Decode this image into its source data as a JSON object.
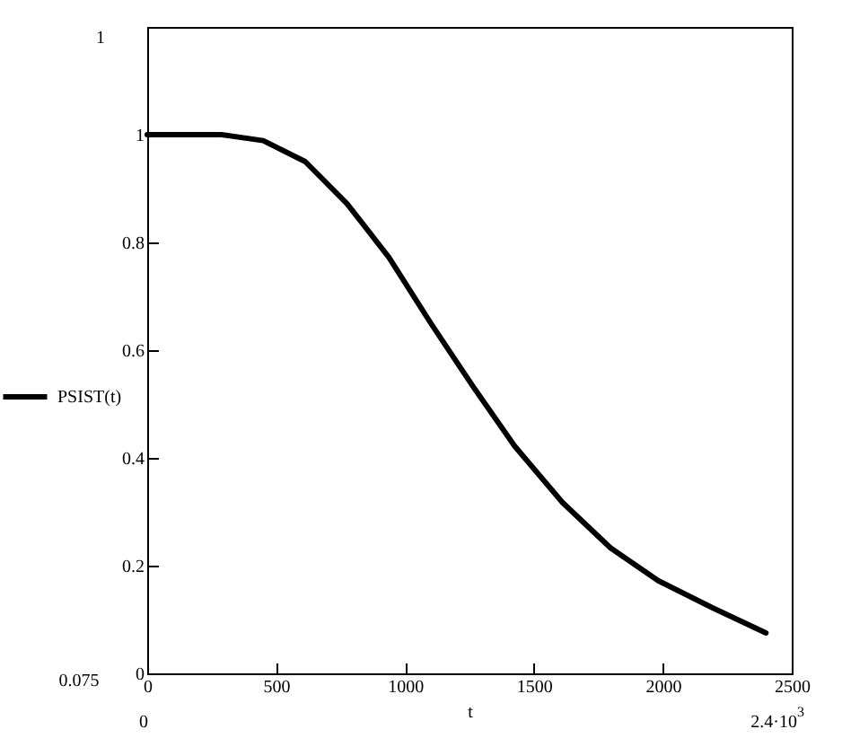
{
  "chart_data": {
    "type": "line",
    "xlabel": "t",
    "legend": "left",
    "grid": false,
    "marker": "none",
    "line_style": "solid",
    "xlim": [
      0,
      2500
    ],
    "xticks": [
      0,
      500,
      1000,
      1500,
      2000,
      2500
    ],
    "ylim": [
      0,
      1.2
    ],
    "yticks": [
      0,
      0.2,
      0.4,
      0.6,
      0.8,
      1
    ],
    "annotations": [
      "1",
      "0.075",
      "0",
      "2.4·10$^{3}$"
    ],
    "series": [
      {
        "name": "PSIST(t)",
        "color": "#000000",
        "x": [
          0,
          288,
          450,
          613,
          775,
          938,
          1100,
          1263,
          1425,
          1611,
          1797,
          1982,
          2191,
          2400
        ],
        "values": [
          1.0,
          1.0,
          0.989,
          0.95,
          0.872,
          0.772,
          0.65,
          0.533,
          0.422,
          0.317,
          0.233,
          0.172,
          0.122,
          0.075
        ]
      }
    ]
  }
}
